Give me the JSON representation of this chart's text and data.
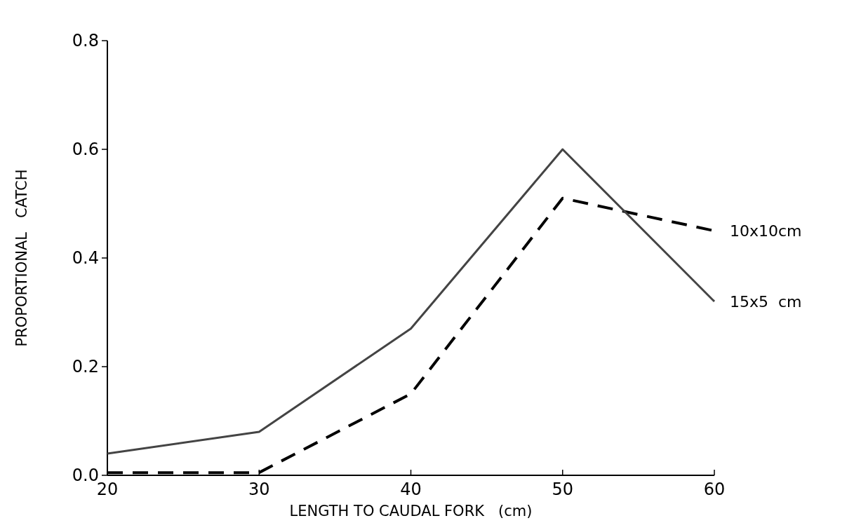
{
  "chart_data": {
    "type": "line",
    "xlabel": "LENGTH TO CAUDAL FORK   (cm)",
    "ylabel": "PROPORTIONAL   CATCH",
    "x": [
      20,
      30,
      40,
      50,
      60
    ],
    "series": [
      {
        "name": "10x10cm",
        "color": "#000000",
        "line_style": "dashed",
        "values": [
          0.005,
          0.005,
          0.15,
          0.51,
          0.45
        ]
      },
      {
        "name": "15x5  cm",
        "color": "#444444",
        "line_style": "solid",
        "values": [
          0.04,
          0.08,
          0.27,
          0.6,
          0.32
        ]
      }
    ],
    "xlim": [
      20,
      60
    ],
    "xticks": [
      20,
      30,
      40,
      50,
      60
    ],
    "ylim": [
      0,
      0.8
    ],
    "yticks": [
      {
        "value": 0,
        "label": "0.0"
      },
      {
        "value": 0.2,
        "label": "0.2"
      },
      {
        "value": 0.4,
        "label": "0.4"
      },
      {
        "value": 0.6,
        "label": "0.6"
      },
      {
        "value": 0.8,
        "label": "0.8"
      }
    ],
    "grid": false
  }
}
